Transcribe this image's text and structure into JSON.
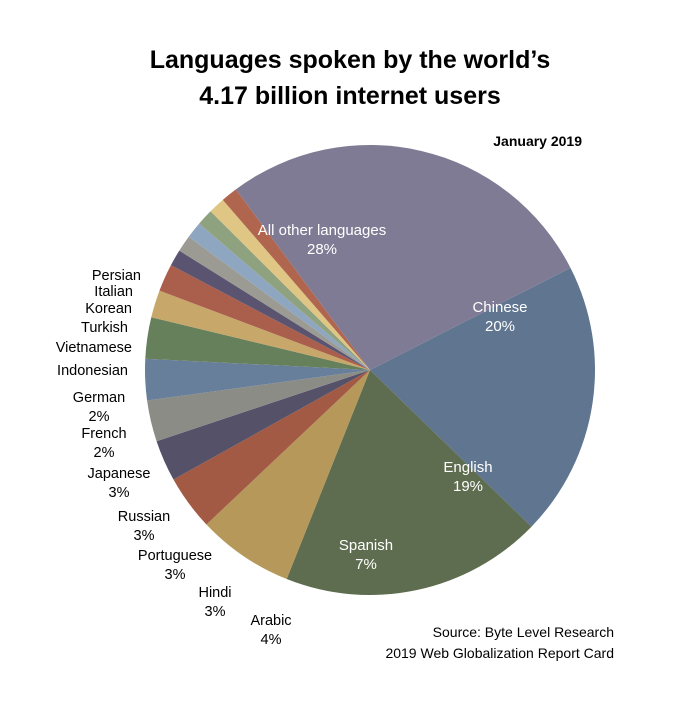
{
  "header": {
    "title_line1": "Languages spoken by the world’s",
    "title_line2": "4.17 billion internet users",
    "date": "January 2019"
  },
  "footer": {
    "source_line1": "Source: Byte Level Research",
    "source_line2": "2019 Web Globalization Report Card"
  },
  "chart_data": {
    "type": "pie",
    "title": "Languages spoken by the world’s 4.17 billion internet users",
    "subtitle": "January 2019",
    "start_angle_deg": 63,
    "direction": "clockwise",
    "slices": [
      {
        "label": "Chinese",
        "value": 20,
        "value_label": "20%",
        "color": "#5f7590",
        "label_position": "inside"
      },
      {
        "label": "English",
        "value": 19,
        "value_label": "19%",
        "color": "#5e6d4f",
        "label_position": "inside"
      },
      {
        "label": "Spanish",
        "value": 7,
        "value_label": "7%",
        "color": "#b6985a",
        "label_position": "inside"
      },
      {
        "label": "Arabic",
        "value": 4,
        "value_label": "4%",
        "color": "#a25a45",
        "label_position": "outside"
      },
      {
        "label": "Hindi",
        "value": 3,
        "value_label": "3%",
        "color": "#545169",
        "label_position": "outside"
      },
      {
        "label": "Portuguese",
        "value": 3,
        "value_label": "3%",
        "color": "#8c8c86",
        "label_position": "outside"
      },
      {
        "label": "Russian",
        "value": 3,
        "value_label": "3%",
        "color": "#677f9a",
        "label_position": "outside"
      },
      {
        "label": "Japanese",
        "value": 3,
        "value_label": "3%",
        "color": "#66805c",
        "label_position": "outside"
      },
      {
        "label": "French",
        "value": 2,
        "value_label": "2%",
        "color": "#c7a76a",
        "label_position": "outside"
      },
      {
        "label": "German",
        "value": 2,
        "value_label": "2%",
        "color": "#aa5e4c",
        "label_position": "outside"
      },
      {
        "label": "Indonesian",
        "value": 1.2,
        "value_label": "",
        "color": "#5a5470",
        "label_position": "outside"
      },
      {
        "label": "Vietnamese",
        "value": 1.2,
        "value_label": "",
        "color": "#9b9b94",
        "label_position": "outside"
      },
      {
        "label": "Turkish",
        "value": 1.2,
        "value_label": "",
        "color": "#8fa6c0",
        "label_position": "outside"
      },
      {
        "label": "Korean",
        "value": 1.2,
        "value_label": "",
        "color": "#8fa27f",
        "label_position": "outside"
      },
      {
        "label": "Italian",
        "value": 1.2,
        "value_label": "",
        "color": "#e0c684",
        "label_position": "outside"
      },
      {
        "label": "Persian",
        "value": 1.2,
        "value_label": "",
        "color": "#b0654f",
        "label_position": "outside"
      },
      {
        "label": "All other languages",
        "value": 28,
        "value_label": "28%",
        "color": "#807b94",
        "label_position": "inside"
      }
    ]
  }
}
